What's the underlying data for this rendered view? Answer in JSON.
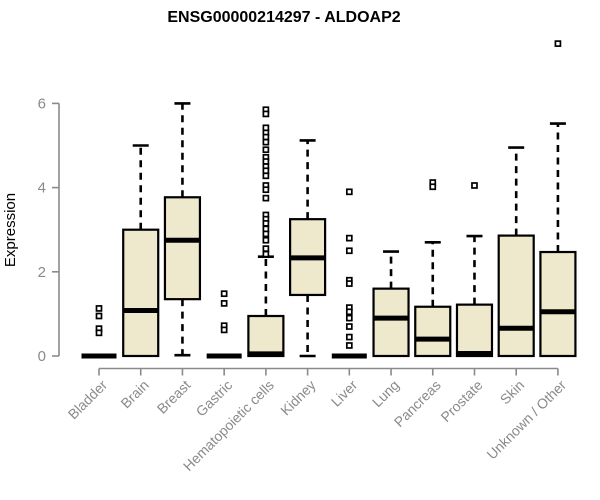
{
  "chart_data": {
    "type": "boxplot",
    "title": "ENSG00000214297 - ALDOAP2",
    "ylabel": "Expression",
    "xlabel": "",
    "ylim": [
      0,
      6
    ],
    "yticks": [
      0,
      2,
      4,
      6
    ],
    "grid": false,
    "legend": "none",
    "axis_color": "#8a8a8a",
    "box_fill": "#EEE8CD",
    "box_stroke": "#000000",
    "categories": [
      "Bladder",
      "Brain",
      "Breast",
      "Gastric",
      "Hematopoietic cells",
      "Kidney",
      "Liver",
      "Lung",
      "Pancreas",
      "Prostate",
      "Skin",
      "Unknown / Other"
    ],
    "boxes": [
      {
        "category": "Bladder",
        "whisker_low": 0,
        "q1": 0,
        "median": 0,
        "q3": 0,
        "whisker_high": 0,
        "outliers": [
          1.13,
          0.95,
          0.65,
          0.55
        ]
      },
      {
        "category": "Brain",
        "whisker_low": 0,
        "q1": 0,
        "median": 1.08,
        "q3": 3.0,
        "whisker_high": 5.0,
        "outliers": []
      },
      {
        "category": "Breast",
        "whisker_low": 0.02,
        "q1": 1.35,
        "median": 2.75,
        "q3": 3.77,
        "whisker_high": 6.0,
        "outliers": []
      },
      {
        "category": "Gastric",
        "whisker_low": 0,
        "q1": 0,
        "median": 0,
        "q3": 0,
        "whisker_high": 0,
        "outliers": [
          1.48,
          1.25,
          0.72,
          0.62
        ]
      },
      {
        "category": "Hematopoietic cells",
        "whisker_low": 0,
        "q1": 0,
        "median": 0.05,
        "q3": 0.95,
        "whisker_high": 2.36,
        "outliers": [
          5.85,
          5.75,
          5.42,
          5.3,
          5.2,
          5.08,
          4.9,
          4.72,
          4.62,
          4.5,
          4.4,
          4.28,
          4.05,
          3.95,
          3.75,
          3.35,
          3.25,
          3.15,
          3.02,
          2.9,
          2.75,
          2.55,
          2.42
        ]
      },
      {
        "category": "Kidney",
        "whisker_low": 0,
        "q1": 1.45,
        "median": 2.33,
        "q3": 3.25,
        "whisker_high": 5.12,
        "outliers": []
      },
      {
        "category": "Liver",
        "whisker_low": 0,
        "q1": 0,
        "median": 0,
        "q3": 0,
        "whisker_high": 0,
        "outliers": [
          3.9,
          2.8,
          2.5,
          1.8,
          1.72,
          1.15,
          1.05,
          0.9,
          0.7,
          0.45,
          0.25
        ]
      },
      {
        "category": "Lung",
        "whisker_low": 0,
        "q1": 0,
        "median": 0.9,
        "q3": 1.6,
        "whisker_high": 2.48,
        "outliers": []
      },
      {
        "category": "Pancreas",
        "whisker_low": 0,
        "q1": 0,
        "median": 0.4,
        "q3": 1.17,
        "whisker_high": 2.7,
        "outliers": [
          4.12,
          4.02
        ]
      },
      {
        "category": "Prostate",
        "whisker_low": 0,
        "q1": 0,
        "median": 0.06,
        "q3": 1.22,
        "whisker_high": 2.85,
        "outliers": [
          4.05
        ]
      },
      {
        "category": "Skin",
        "whisker_low": 0,
        "q1": 0,
        "median": 0.66,
        "q3": 2.86,
        "whisker_high": 4.95,
        "outliers": []
      },
      {
        "category": "Unknown / Other",
        "whisker_low": 0,
        "q1": 0,
        "median": 1.05,
        "q3": 2.47,
        "whisker_high": 5.52,
        "outliers": [
          7.42
        ]
      }
    ]
  }
}
